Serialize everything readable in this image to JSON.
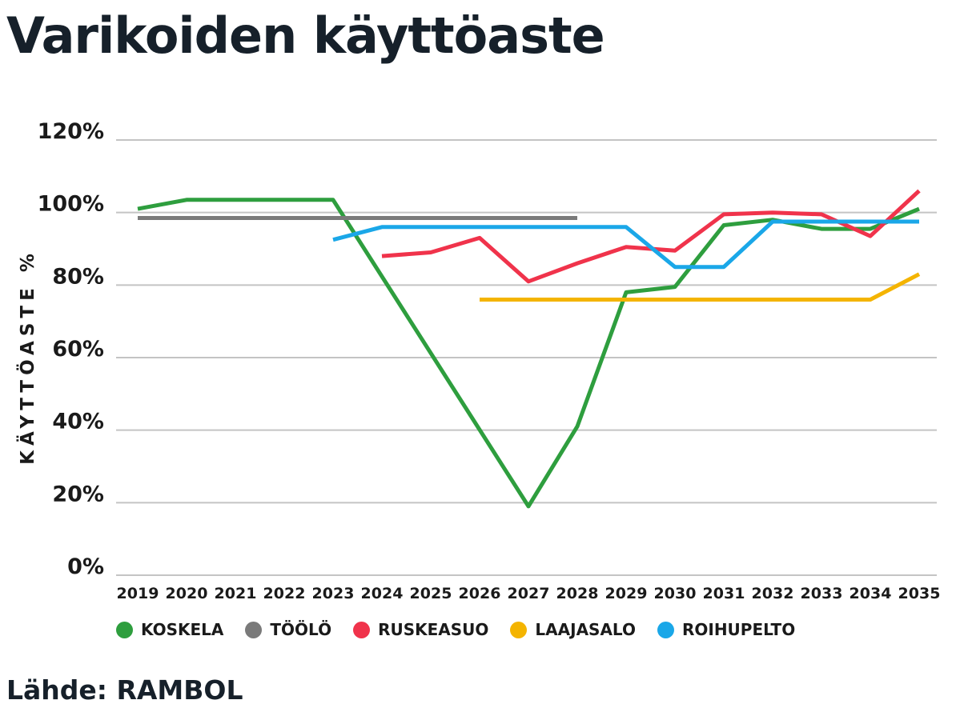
{
  "title": "Varikoiden käyttöaste",
  "source": "Lähde: RAMBOL",
  "chart_data": {
    "type": "line",
    "title": "Varikoiden käyttöaste",
    "xlabel": "",
    "ylabel": "KÄYTTÖASTE %",
    "x": [
      2019,
      2020,
      2021,
      2022,
      2023,
      2024,
      2025,
      2026,
      2027,
      2028,
      2029,
      2030,
      2031,
      2032,
      2033,
      2034,
      2035
    ],
    "x_tick_labels": [
      "2019",
      "2020",
      "2021",
      "2022",
      "2023",
      "2024",
      "2025",
      "2026",
      "2027",
      "2028",
      "2029",
      "2030",
      "2031",
      "2032",
      "2033",
      "2034",
      "2035"
    ],
    "y_tick_labels": [
      "0%",
      "20%",
      "40%",
      "60%",
      "80%",
      "100%",
      "120%"
    ],
    "y_ticks": [
      0,
      20,
      40,
      60,
      80,
      100,
      120
    ],
    "ylim": [
      0,
      120
    ],
    "grid": true,
    "legend_position": "bottom",
    "series": [
      {
        "name": "KOSKELA",
        "color": "#2e9e3e",
        "points": [
          [
            2019,
            101
          ],
          [
            2020,
            103.5
          ],
          [
            2021,
            103.5
          ],
          [
            2022,
            103.5
          ],
          [
            2023,
            103.5
          ],
          [
            2027,
            19
          ],
          [
            2028,
            41
          ],
          [
            2029,
            78
          ],
          [
            2030,
            79.5
          ],
          [
            2031,
            96.5
          ],
          [
            2032,
            98
          ],
          [
            2033,
            95.5
          ],
          [
            2034,
            95.5
          ],
          [
            2035,
            101
          ]
        ]
      },
      {
        "name": "TÖÖLÖ",
        "color": "#7a7a7a",
        "points": [
          [
            2019,
            98.5
          ],
          [
            2024,
            98.5
          ],
          [
            2028,
            98.5
          ]
        ]
      },
      {
        "name": "RUSKEASUO",
        "color": "#f0334b",
        "points": [
          [
            2024,
            88
          ],
          [
            2025,
            89
          ],
          [
            2026,
            93
          ],
          [
            2027,
            81
          ],
          [
            2028,
            86
          ],
          [
            2029,
            90.5
          ],
          [
            2030,
            89.5
          ],
          [
            2031,
            99.5
          ],
          [
            2032,
            100
          ],
          [
            2033,
            99.5
          ],
          [
            2034,
            93.5
          ],
          [
            2035,
            106
          ]
        ]
      },
      {
        "name": "LAAJASALO",
        "color": "#f4b400",
        "points": [
          [
            2026,
            76
          ],
          [
            2027,
            76
          ],
          [
            2028,
            76
          ],
          [
            2029,
            76
          ],
          [
            2030,
            76
          ],
          [
            2031,
            76
          ],
          [
            2032,
            76
          ],
          [
            2033,
            76
          ],
          [
            2034,
            76
          ],
          [
            2035,
            83
          ]
        ]
      },
      {
        "name": "ROIHUPELTO",
        "color": "#1aa7e8",
        "points": [
          [
            2023,
            92.5
          ],
          [
            2024,
            96
          ],
          [
            2025,
            96
          ],
          [
            2026,
            96
          ],
          [
            2027,
            96
          ],
          [
            2028,
            96
          ],
          [
            2029,
            96
          ],
          [
            2030,
            85
          ],
          [
            2031,
            85
          ],
          [
            2032,
            97.5
          ],
          [
            2033,
            97.5
          ],
          [
            2034,
            97.5
          ],
          [
            2035,
            97.5
          ]
        ]
      }
    ]
  }
}
